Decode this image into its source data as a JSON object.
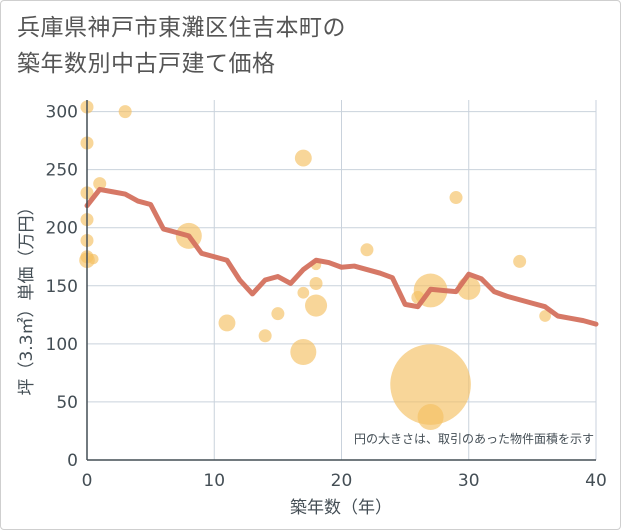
{
  "chart_data": {
    "type": "scatter",
    "title_lines": [
      "兵庫県神戸市東灘区住吉本町の",
      "築年数別中古戸建て価格"
    ],
    "xlabel": "築年数（年）",
    "ylabel": "坪（3.3㎡）単価（万円）",
    "note": "円の大きさは、取引のあった物件面積を示す",
    "xlim": [
      0,
      40
    ],
    "ylim": [
      0,
      310
    ],
    "x_ticks": [
      0,
      10,
      20,
      30,
      40
    ],
    "y_ticks": [
      0,
      50,
      100,
      150,
      200,
      250,
      300
    ],
    "grid": true,
    "colors": {
      "bubble": "#f5c062",
      "line": "#d4715e",
      "grid": "#c9d2dc",
      "axis": "#444e55"
    },
    "scatter_points": [
      {
        "x": 0,
        "y": 304,
        "size": 1.0
      },
      {
        "x": 0,
        "y": 273,
        "size": 1.0
      },
      {
        "x": 0,
        "y": 230,
        "size": 1.0
      },
      {
        "x": 0,
        "y": 207,
        "size": 1.0
      },
      {
        "x": 0,
        "y": 189,
        "size": 1.0
      },
      {
        "x": 0,
        "y": 175,
        "size": 1.0
      },
      {
        "x": 0,
        "y": 172,
        "size": 1.2
      },
      {
        "x": 0.5,
        "y": 173,
        "size": 0.8
      },
      {
        "x": 1,
        "y": 238,
        "size": 1.0
      },
      {
        "x": 3,
        "y": 300,
        "size": 1.0
      },
      {
        "x": 8,
        "y": 193,
        "size": 2.0
      },
      {
        "x": 11,
        "y": 118,
        "size": 1.3
      },
      {
        "x": 14,
        "y": 107,
        "size": 1.0
      },
      {
        "x": 15,
        "y": 126,
        "size": 1.0
      },
      {
        "x": 17,
        "y": 260,
        "size": 1.3
      },
      {
        "x": 17,
        "y": 144,
        "size": 0.9
      },
      {
        "x": 17,
        "y": 93,
        "size": 2.0
      },
      {
        "x": 18,
        "y": 152,
        "size": 1.0
      },
      {
        "x": 18,
        "y": 133,
        "size": 1.7
      },
      {
        "x": 18,
        "y": 168,
        "size": 0.8
      },
      {
        "x": 22,
        "y": 181,
        "size": 1.0
      },
      {
        "x": 26,
        "y": 140,
        "size": 1.0
      },
      {
        "x": 27,
        "y": 146,
        "size": 2.6
      },
      {
        "x": 27,
        "y": 65,
        "size": 6.2
      },
      {
        "x": 27,
        "y": 37,
        "size": 2.0
      },
      {
        "x": 29,
        "y": 226,
        "size": 1.0
      },
      {
        "x": 30,
        "y": 148,
        "size": 1.8
      },
      {
        "x": 34,
        "y": 171,
        "size": 1.0
      },
      {
        "x": 36,
        "y": 124,
        "size": 0.9
      }
    ],
    "trend_line": {
      "x": [
        0,
        1,
        2,
        3,
        4,
        5,
        6,
        7,
        8,
        9,
        10,
        11,
        12,
        13,
        14,
        15,
        16,
        17,
        18,
        19,
        20,
        21,
        22,
        23,
        24,
        25,
        26,
        27,
        28,
        29,
        30,
        31,
        32,
        33,
        34,
        35,
        36,
        37,
        38,
        39,
        40
      ],
      "y": [
        219,
        233,
        231,
        229,
        223,
        220,
        199,
        196,
        193,
        178,
        175,
        172,
        155,
        143,
        155,
        158,
        152,
        164,
        172,
        170,
        166,
        167,
        164,
        161,
        157,
        134,
        132,
        147,
        146,
        145,
        160,
        156,
        145,
        141,
        138,
        135,
        132,
        124,
        122,
        120,
        117
      ]
    }
  }
}
